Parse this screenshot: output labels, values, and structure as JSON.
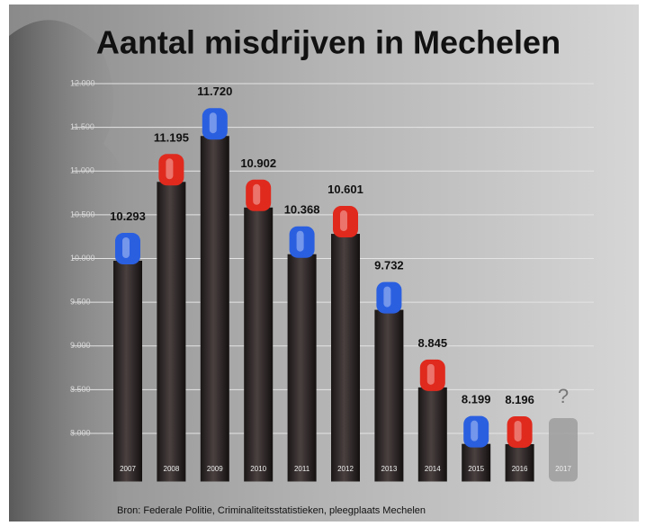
{
  "chart_data": {
    "type": "bar",
    "title": "Aantal misdrijven in Mechelen",
    "source": "Bron: Federale Politie, Criminaliteitsstatistieken, pleegplaats Mechelen",
    "categories": [
      "2007",
      "2008",
      "2009",
      "2010",
      "2011",
      "2012",
      "2013",
      "2014",
      "2015",
      "2016",
      "2017"
    ],
    "values": [
      10293,
      11195,
      11720,
      10902,
      10368,
      10601,
      9732,
      8845,
      8199,
      8196,
      null
    ],
    "value_labels": [
      "10.293",
      "11.195",
      "11.720",
      "10.902",
      "10.368",
      "10.601",
      "9.732",
      "8.845",
      "8.199",
      "8.196",
      null
    ],
    "colors": [
      "#2a5fe0",
      "#e02a1e",
      "#2a5fe0",
      "#e02a1e",
      "#2a5fe0",
      "#e02a1e",
      "#2a5fe0",
      "#e02a1e",
      "#2a5fe0",
      "#e02a1e",
      null
    ],
    "unknown_label": "?",
    "ylim": [
      7450,
      12000
    ],
    "yticks": [
      {
        "value": 8000,
        "label": "8.000"
      },
      {
        "value": 8500,
        "label": "8.500"
      },
      {
        "value": 9000,
        "label": "9.000"
      },
      {
        "value": 9500,
        "label": "9.500"
      },
      {
        "value": 10000,
        "label": "10.000"
      },
      {
        "value": 10500,
        "label": "10.500"
      },
      {
        "value": 11000,
        "label": "11.000"
      },
      {
        "value": 11500,
        "label": "11.500"
      },
      {
        "value": 12000,
        "label": "12.000"
      }
    ],
    "grid": true
  }
}
